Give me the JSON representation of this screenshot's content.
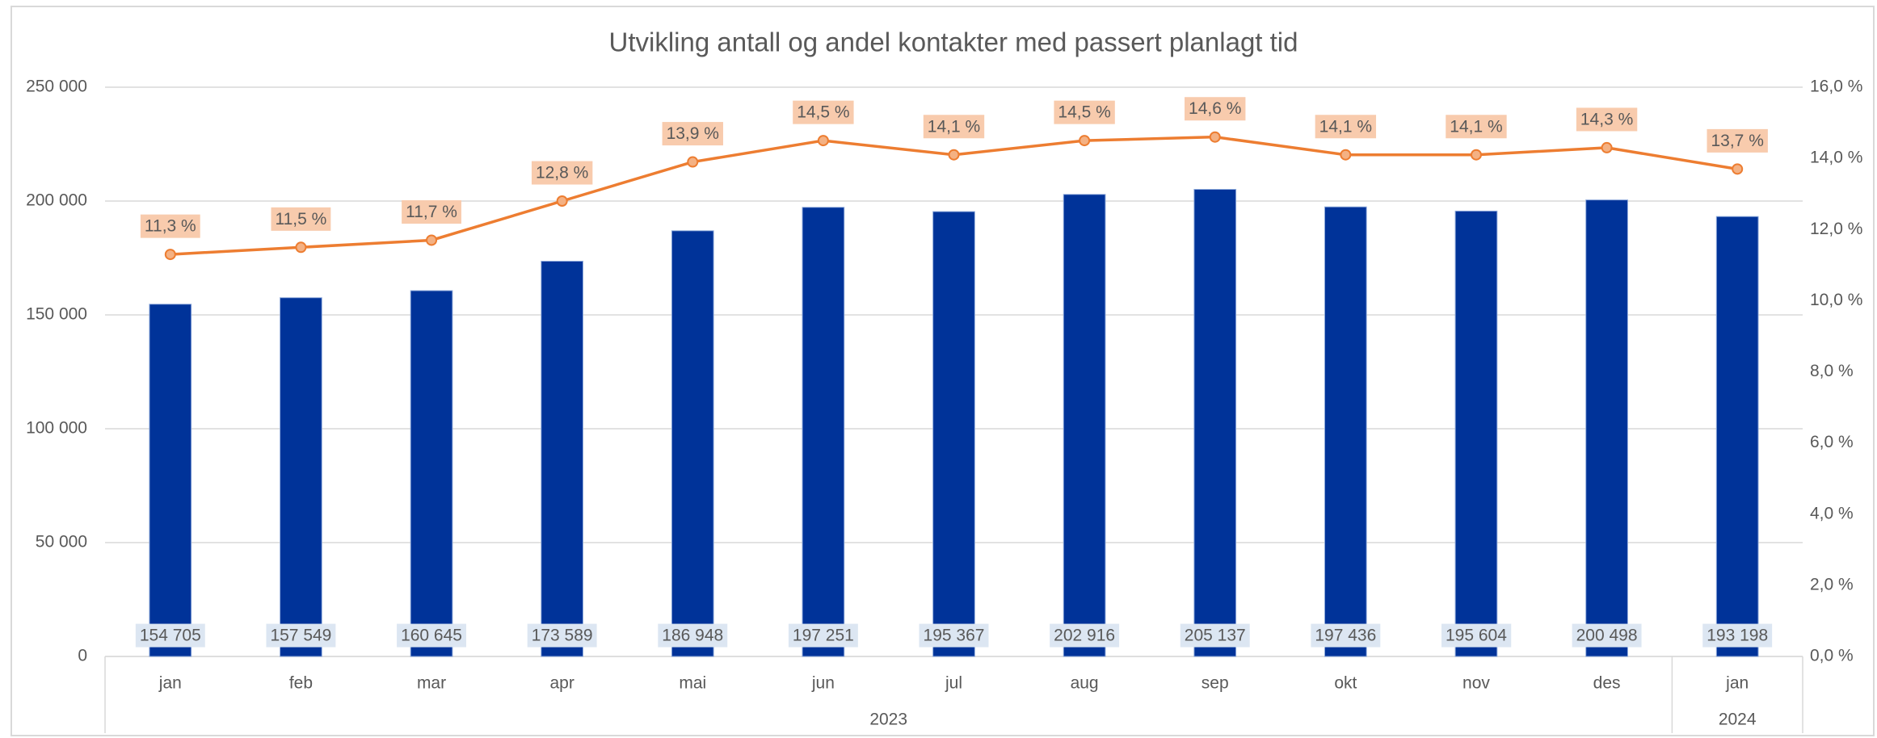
{
  "chart_data": {
    "type": "combo",
    "title": "Utvikling antall og andel kontakter med passert planlagt tid",
    "categories": [
      "jan",
      "feb",
      "mar",
      "apr",
      "mai",
      "jun",
      "jul",
      "aug",
      "sep",
      "okt",
      "nov",
      "des",
      "jan"
    ],
    "category_groups": [
      {
        "label": "2023",
        "span": 12
      },
      {
        "label": "2024",
        "span": 1
      }
    ],
    "series": [
      {
        "type": "bar",
        "color": "#003399",
        "values": [
          154705,
          157549,
          160645,
          173589,
          186948,
          197251,
          195367,
          202916,
          205137,
          197436,
          195604,
          200498,
          193198
        ],
        "value_labels": [
          "154 705",
          "157 549",
          "160 645",
          "173 589",
          "186 948",
          "197 251",
          "195 367",
          "202 916",
          "205 137",
          "197 436",
          "195 604",
          "200 498",
          "193 198"
        ]
      },
      {
        "type": "line",
        "axis": "y2",
        "color": "#ed7d31",
        "values": [
          11.3,
          11.5,
          11.7,
          12.8,
          13.9,
          14.5,
          14.1,
          14.5,
          14.6,
          14.1,
          14.1,
          14.3,
          13.7
        ],
        "value_labels": [
          "11,3 %",
          "11,5 %",
          "11,7 %",
          "12,8 %",
          "13,9 %",
          "14,5 %",
          "14,1 %",
          "14,5 %",
          "14,6 %",
          "14,1 %",
          "14,1 %",
          "14,3 %",
          "13,7 %"
        ]
      }
    ],
    "ylim": [
      0,
      250000
    ],
    "yticks": [
      0,
      {
        "value": 50000,
        "label": "50 000"
      },
      {
        "value": 100000,
        "label": "100 000"
      },
      {
        "value": 150000,
        "label": "150 000"
      },
      {
        "value": 200000,
        "label": "200 000"
      },
      {
        "value": 250000,
        "label": "250 000"
      }
    ],
    "y2lim": [
      0,
      16
    ],
    "y2ticks": [
      {
        "value": 0,
        "label": "0,0 %"
      },
      {
        "value": 2,
        "label": "2,0 %"
      },
      {
        "value": 4,
        "label": "4,0 %"
      },
      {
        "value": 6,
        "label": "6,0 %"
      },
      {
        "value": 8,
        "label": "8,0 %"
      },
      {
        "value": 10,
        "label": "10,0 %"
      },
      {
        "value": 12,
        "label": "12,0 %"
      },
      {
        "value": 14,
        "label": "14,0 %"
      },
      {
        "value": 16,
        "label": "16,0 %"
      }
    ],
    "grid": true
  }
}
